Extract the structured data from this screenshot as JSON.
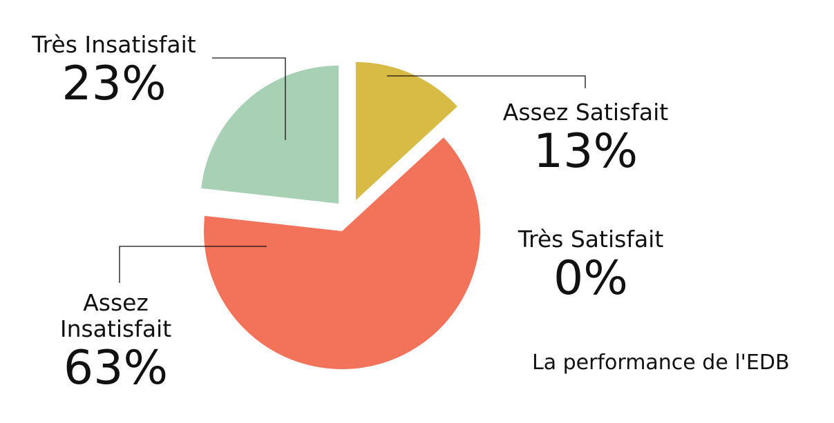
{
  "chart_data": {
    "type": "pie",
    "title": "La performance de l'EDB",
    "slices": [
      {
        "name": "Assez Satisfait",
        "value": 13,
        "label": "13%",
        "color": "#d8bb45"
      },
      {
        "name": "Très Satisfait",
        "value": 0,
        "label": "0%",
        "color": "#c8c8c8"
      },
      {
        "name": "Assez Insatisfait",
        "value": 63,
        "label": "63%",
        "color": "#f2735a"
      },
      {
        "name": "Très Insatisfait",
        "value": 23,
        "label": "23%",
        "color": "#a8d0b4"
      }
    ]
  }
}
